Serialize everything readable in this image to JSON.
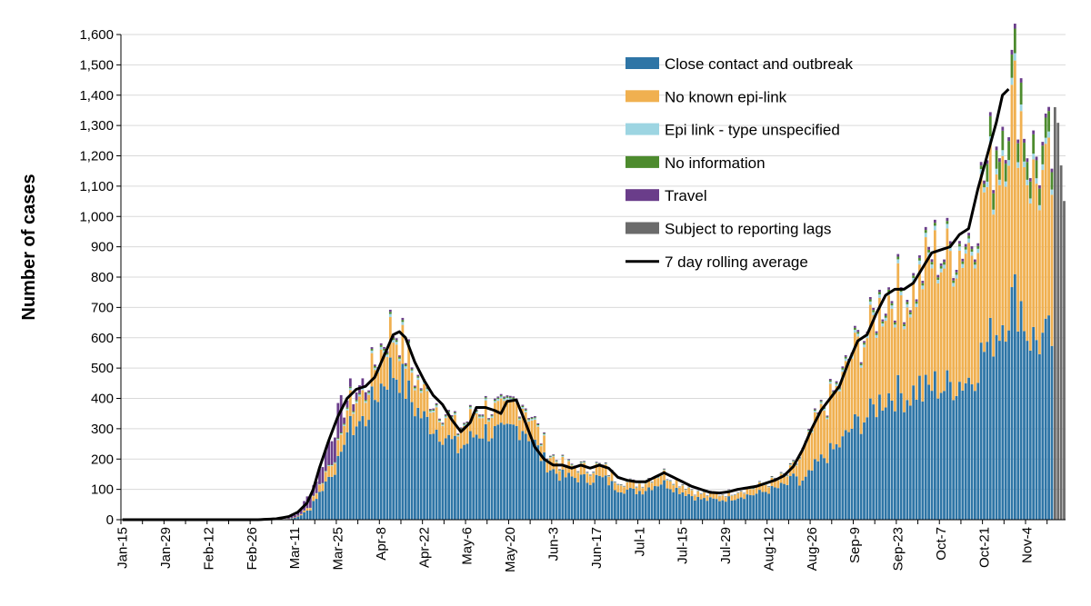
{
  "chart_data": {
    "type": "bar",
    "stacked": true,
    "ylabel": "Number of cases",
    "xlabel": "",
    "ylim": [
      0,
      1600
    ],
    "y_ticks": [
      "0",
      "100",
      "200",
      "300",
      "400",
      "500",
      "600",
      "700",
      "800",
      "900",
      "1,000",
      "1,100",
      "1,200",
      "1,300",
      "1,400",
      "1,500",
      "1,600"
    ],
    "x_ticks": [
      "Jan-15",
      "Jan-29",
      "Feb-12",
      "Feb-26",
      "Mar-11",
      "Mar-25",
      "Apr-8",
      "Apr-22",
      "May-6",
      "May-20",
      "Jun-3",
      "Jun-17",
      "Jul-1",
      "Jul-15",
      "Jul-29",
      "Aug-12",
      "Aug-26",
      "Sep-9",
      "Sep-23",
      "Oct-7",
      "Oct-21",
      "Nov-4"
    ],
    "grid": true,
    "legend_position": "top-right",
    "legend": [
      {
        "label": "Close contact and outbreak",
        "color": "#2E75A6",
        "kind": "box"
      },
      {
        "label": "No known epi-link",
        "color": "#F0B050",
        "kind": "box"
      },
      {
        "label": "Epi link - type unspecified",
        "color": "#9DD5E2",
        "kind": "box"
      },
      {
        "label": "No information",
        "color": "#4D8B2E",
        "kind": "box"
      },
      {
        "label": "Travel",
        "color": "#6A3D8A",
        "kind": "box"
      },
      {
        "label": "Subject to reporting lags",
        "color": "#6B6B6B",
        "kind": "box"
      },
      {
        "label": "7 day rolling average",
        "color": "#000000",
        "kind": "line"
      }
    ],
    "series_colors": {
      "close_contact": "#2E75A6",
      "no_epi_link": "#F0B050",
      "epi_unspecified": "#9DD5E2",
      "no_information": "#4D8B2E",
      "travel": "#6A3D8A",
      "reporting_lags": "#6B6B6B",
      "rolling_avg": "#000000"
    },
    "x_start_date": "Jan-15",
    "days": 307,
    "totals_keypoints": [
      [
        0,
        0
      ],
      [
        45,
        0
      ],
      [
        53,
        2
      ],
      [
        56,
        15
      ],
      [
        58,
        40
      ],
      [
        61,
        90
      ],
      [
        64,
        160
      ],
      [
        67,
        260
      ],
      [
        70,
        340
      ],
      [
        73,
        400
      ],
      [
        76,
        430
      ],
      [
        79,
        450
      ],
      [
        82,
        520
      ],
      [
        85,
        600
      ],
      [
        87,
        640
      ],
      [
        90,
        620
      ],
      [
        92,
        560
      ],
      [
        95,
        480
      ],
      [
        98,
        430
      ],
      [
        101,
        400
      ],
      [
        104,
        370
      ],
      [
        107,
        330
      ],
      [
        109,
        300
      ],
      [
        112,
        330
      ],
      [
        115,
        370
      ],
      [
        118,
        380
      ],
      [
        121,
        370
      ],
      [
        124,
        360
      ],
      [
        127,
        390
      ],
      [
        130,
        400
      ],
      [
        133,
        350
      ],
      [
        136,
        270
      ],
      [
        139,
        220
      ],
      [
        142,
        190
      ],
      [
        145,
        180
      ],
      [
        148,
        180
      ],
      [
        151,
        170
      ],
      [
        154,
        180
      ],
      [
        157,
        170
      ],
      [
        160,
        140
      ],
      [
        163,
        130
      ],
      [
        166,
        120
      ],
      [
        169,
        125
      ],
      [
        172,
        145
      ],
      [
        175,
        160
      ],
      [
        178,
        145
      ],
      [
        181,
        125
      ],
      [
        184,
        110
      ],
      [
        187,
        90
      ],
      [
        190,
        85
      ],
      [
        194,
        85
      ],
      [
        197,
        90
      ],
      [
        200,
        100
      ],
      [
        203,
        105
      ],
      [
        206,
        110
      ],
      [
        210,
        125
      ],
      [
        213,
        135
      ],
      [
        216,
        150
      ],
      [
        219,
        190
      ],
      [
        222,
        240
      ],
      [
        225,
        320
      ],
      [
        228,
        380
      ],
      [
        231,
        420
      ],
      [
        234,
        470
      ],
      [
        237,
        560
      ],
      [
        240,
        600
      ],
      [
        243,
        640
      ],
      [
        246,
        720
      ],
      [
        249,
        760
      ],
      [
        252,
        770
      ],
      [
        255,
        750
      ],
      [
        258,
        790
      ],
      [
        261,
        860
      ],
      [
        264,
        900
      ],
      [
        267,
        880
      ],
      [
        270,
        910
      ],
      [
        273,
        930
      ],
      [
        276,
        950
      ],
      [
        279,
        1100
      ],
      [
        282,
        1200
      ],
      [
        285,
        1300
      ],
      [
        288,
        1420
      ],
      [
        290,
        1480
      ],
      [
        292,
        1440
      ],
      [
        294,
        1250
      ],
      [
        296,
        1200
      ]
    ],
    "rolling_avg_keypoints": [
      [
        0,
        0
      ],
      [
        44,
        0
      ],
      [
        50,
        3
      ],
      [
        54,
        10
      ],
      [
        57,
        25
      ],
      [
        60,
        55
      ],
      [
        62,
        100
      ],
      [
        64,
        170
      ],
      [
        67,
        260
      ],
      [
        70,
        340
      ],
      [
        73,
        400
      ],
      [
        76,
        430
      ],
      [
        79,
        440
      ],
      [
        82,
        470
      ],
      [
        85,
        540
      ],
      [
        88,
        610
      ],
      [
        90,
        620
      ],
      [
        92,
        600
      ],
      [
        95,
        520
      ],
      [
        98,
        460
      ],
      [
        101,
        410
      ],
      [
        104,
        380
      ],
      [
        107,
        330
      ],
      [
        110,
        290
      ],
      [
        113,
        320
      ],
      [
        115,
        370
      ],
      [
        118,
        370
      ],
      [
        121,
        360
      ],
      [
        123,
        350
      ],
      [
        125,
        390
      ],
      [
        128,
        395
      ],
      [
        131,
        320
      ],
      [
        134,
        240
      ],
      [
        137,
        200
      ],
      [
        140,
        180
      ],
      [
        143,
        180
      ],
      [
        146,
        170
      ],
      [
        149,
        180
      ],
      [
        152,
        170
      ],
      [
        155,
        180
      ],
      [
        158,
        170
      ],
      [
        161,
        140
      ],
      [
        164,
        130
      ],
      [
        167,
        125
      ],
      [
        170,
        125
      ],
      [
        173,
        140
      ],
      [
        176,
        155
      ],
      [
        179,
        140
      ],
      [
        182,
        125
      ],
      [
        185,
        110
      ],
      [
        188,
        100
      ],
      [
        191,
        90
      ],
      [
        194,
        88
      ],
      [
        197,
        92
      ],
      [
        200,
        100
      ],
      [
        203,
        105
      ],
      [
        206,
        110
      ],
      [
        209,
        120
      ],
      [
        212,
        130
      ],
      [
        215,
        145
      ],
      [
        218,
        175
      ],
      [
        221,
        230
      ],
      [
        224,
        300
      ],
      [
        227,
        360
      ],
      [
        230,
        400
      ],
      [
        233,
        440
      ],
      [
        236,
        520
      ],
      [
        239,
        590
      ],
      [
        242,
        610
      ],
      [
        245,
        680
      ],
      [
        248,
        740
      ],
      [
        251,
        760
      ],
      [
        254,
        760
      ],
      [
        257,
        780
      ],
      [
        260,
        830
      ],
      [
        263,
        880
      ],
      [
        266,
        890
      ],
      [
        269,
        900
      ],
      [
        272,
        940
      ],
      [
        275,
        960
      ],
      [
        278,
        1090
      ],
      [
        281,
        1200
      ],
      [
        284,
        1310
      ],
      [
        286,
        1400
      ],
      [
        288,
        1420
      ]
    ]
  }
}
